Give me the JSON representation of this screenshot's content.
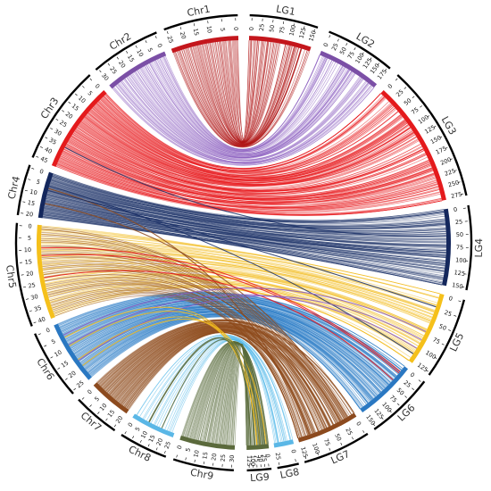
{
  "title": "",
  "segments": [
    {
      "name": "Chr1",
      "side": "left",
      "start_deg": 339.5,
      "end_deg": 358.5,
      "color": "#c4161c",
      "ticks": [
        25,
        20,
        15,
        10,
        5,
        0
      ]
    },
    {
      "name": "LG1",
      "side": "right",
      "start_deg": 1.5,
      "end_deg": 19,
      "color": "#c4161c",
      "ticks": [
        0,
        25,
        50,
        75,
        100,
        125,
        150
      ]
    },
    {
      "name": "LG2",
      "side": "right",
      "start_deg": 22,
      "end_deg": 40,
      "color": "#7b4fa6",
      "ticks": [
        0,
        25,
        50,
        75,
        100,
        125,
        150,
        175
      ]
    },
    {
      "name": "LG3",
      "side": "right",
      "start_deg": 42.5,
      "end_deg": 78,
      "color": "#e41a1c",
      "ticks": [
        0,
        25,
        50,
        75,
        100,
        125,
        150,
        175,
        200,
        225,
        250,
        275
      ]
    },
    {
      "name": "LG4",
      "side": "right",
      "start_deg": 80.5,
      "end_deg": 102,
      "color": "#14275c",
      "ticks": [
        0,
        25,
        50,
        75,
        100,
        125,
        150
      ]
    },
    {
      "name": "LG5",
      "side": "right",
      "start_deg": 104.5,
      "end_deg": 125.5,
      "color": "#f5c01a",
      "ticks": [
        0,
        25,
        50,
        75,
        100,
        125
      ]
    },
    {
      "name": "LG6",
      "side": "right",
      "start_deg": 127.5,
      "end_deg": 145,
      "color": "#2a78c2",
      "ticks": [
        0,
        25,
        50,
        75,
        100,
        125,
        150
      ]
    },
    {
      "name": "LG7",
      "side": "right",
      "start_deg": 147,
      "end_deg": 164.5,
      "color": "#8c4a1e",
      "ticks": [
        0,
        25,
        50,
        75,
        100,
        125
      ]
    },
    {
      "name": "LG8",
      "side": "right",
      "start_deg": 166,
      "end_deg": 171.5,
      "color": "#5ab7e6",
      "ticks": [
        0,
        25
      ]
    },
    {
      "name": "LG9",
      "side": "right",
      "start_deg": 173,
      "end_deg": 179.2,
      "color": "#5b6a3c",
      "ticks": [
        0,
        25,
        50,
        75,
        100,
        125
      ]
    },
    {
      "name": "Chr9",
      "side": "left",
      "start_deg": 182.5,
      "end_deg": 198,
      "color": "#5b6a3c",
      "ticks": [
        30,
        25,
        20,
        15,
        10,
        5,
        0
      ]
    },
    {
      "name": "Chr8",
      "side": "left",
      "start_deg": 200,
      "end_deg": 212.5,
      "color": "#5ab7e6",
      "ticks": [
        25,
        20,
        15,
        10,
        5,
        0
      ]
    },
    {
      "name": "Chr7",
      "side": "left",
      "start_deg": 214.5,
      "end_deg": 226.5,
      "color": "#8c4a1e",
      "ticks": [
        20,
        15,
        10,
        5,
        0
      ]
    },
    {
      "name": "Chr6",
      "side": "left",
      "start_deg": 228.5,
      "end_deg": 246.5,
      "color": "#2a78c2",
      "ticks": [
        25,
        20,
        15,
        10,
        5,
        0
      ]
    },
    {
      "name": "Chr5",
      "side": "left",
      "start_deg": 248.5,
      "end_deg": 275,
      "color": "#f5c01a",
      "ticks": [
        40,
        35,
        30,
        25,
        20,
        15,
        10,
        5,
        0
      ]
    },
    {
      "name": "Chr4",
      "side": "left",
      "start_deg": 277,
      "end_deg": 290,
      "color": "#14275c",
      "ticks": [
        20,
        15,
        10,
        5,
        0
      ]
    },
    {
      "name": "Chr3",
      "side": "left",
      "start_deg": 292,
      "end_deg": 317.5,
      "color": "#e41a1c",
      "ticks": [
        45,
        40,
        35,
        30,
        25,
        20,
        15,
        10,
        5,
        0
      ]
    },
    {
      "name": "Chr2",
      "side": "left",
      "start_deg": 319.5,
      "end_deg": 337.5,
      "color": "#7b4fa6",
      "ticks": [
        30,
        25,
        20,
        15,
        10,
        5,
        0
      ]
    }
  ],
  "links": [
    {
      "from": "Chr1",
      "to": "LG1",
      "color": "#b01818",
      "count": 70
    },
    {
      "from": "Chr2",
      "to": "LG2",
      "color": "#8a5cc0",
      "count": 55
    },
    {
      "from": "Chr3",
      "to": "LG3",
      "color": "#e8151a",
      "count": 150
    },
    {
      "from": "Chr4",
      "to": "LG4",
      "color": "#1a2f66",
      "count": 110
    },
    {
      "from": "Chr5",
      "to": "LG5",
      "color": "#f2bc1e",
      "count": 70
    },
    {
      "from": "Chr6",
      "to": "LG6",
      "color": "#2a7cc6",
      "count": 110
    },
    {
      "from": "Chr7",
      "to": "LG7",
      "color": "#8e4a1c",
      "count": 90
    },
    {
      "from": "Chr8",
      "to": "LG8",
      "color": "#48b4e8",
      "count": 18
    },
    {
      "from": "Chr9",
      "to": "LG9",
      "color": "#5a6b3c",
      "count": 70
    },
    {
      "from": "Chr5",
      "to": "LG7",
      "color": "#8e4a1c",
      "count": 45
    },
    {
      "from": "Chr4",
      "to": "LG7",
      "color": "#8e4a1c",
      "count": 2
    },
    {
      "from": "Chr3",
      "to": "LG4",
      "color": "#1a2f66",
      "count": 1
    },
    {
      "from": "Chr4",
      "to": "LG5",
      "color": "#1a2f66",
      "count": 2
    },
    {
      "from": "Chr5",
      "to": "LG6",
      "color": "#e8151a",
      "count": 3
    },
    {
      "from": "Chr6",
      "to": "LG5",
      "color": "#8a5cc0",
      "count": 3
    },
    {
      "from": "Chr6",
      "to": "LG9",
      "color": "#f2bc1e",
      "count": 4
    },
    {
      "from": "Chr8",
      "to": "LG9",
      "color": "#5a6b3c",
      "count": 3
    }
  ]
}
